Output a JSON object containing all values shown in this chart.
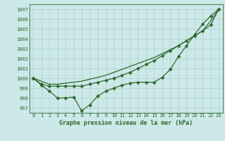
{
  "x": [
    0,
    1,
    2,
    3,
    4,
    5,
    6,
    7,
    8,
    9,
    10,
    11,
    12,
    13,
    14,
    15,
    16,
    17,
    18,
    19,
    20,
    21,
    22,
    23
  ],
  "line_volatile": [
    1000.0,
    999.3,
    998.7,
    998.0,
    998.0,
    998.1,
    996.7,
    997.3,
    998.2,
    998.7,
    999.0,
    999.3,
    999.5,
    999.6,
    999.6,
    999.6,
    1000.1,
    1000.9,
    1002.2,
    1003.3,
    1004.4,
    1005.5,
    1006.3,
    1007.0
  ],
  "line_smooth": [
    1000.0,
    999.4,
    999.2,
    999.2,
    999.2,
    999.2,
    999.2,
    999.4,
    999.6,
    999.8,
    1000.0,
    1000.3,
    1000.6,
    1001.0,
    1001.4,
    1001.8,
    1002.3,
    1002.8,
    1003.3,
    1003.8,
    1004.3,
    1004.8,
    1005.4,
    1007.0
  ],
  "line_linear": [
    1000.0,
    999.7,
    999.4,
    999.4,
    999.5,
    999.6,
    999.7,
    999.9,
    1000.1,
    1000.3,
    1000.6,
    1000.9,
    1001.2,
    1001.5,
    1001.8,
    1002.1,
    1002.5,
    1002.9,
    1003.3,
    1003.8,
    1004.3,
    1004.8,
    1005.8,
    1007.0
  ],
  "bg_color": "#cce8e8",
  "line_color": "#2d6a2d",
  "grid_color": "#b0d0d0",
  "xlabel": "Graphe pression niveau de la mer (hPa)",
  "ylim": [
    996.5,
    1007.5
  ],
  "yticks": [
    997,
    998,
    999,
    1000,
    1001,
    1002,
    1003,
    1004,
    1005,
    1006,
    1007
  ],
  "xticks": [
    0,
    1,
    2,
    3,
    4,
    5,
    6,
    7,
    8,
    9,
    10,
    11,
    12,
    13,
    14,
    15,
    16,
    17,
    18,
    19,
    20,
    21,
    22,
    23
  ],
  "tick_fontsize": 5.0,
  "xlabel_fontsize": 6.0,
  "linewidth": 0.9,
  "markersize": 2.5
}
